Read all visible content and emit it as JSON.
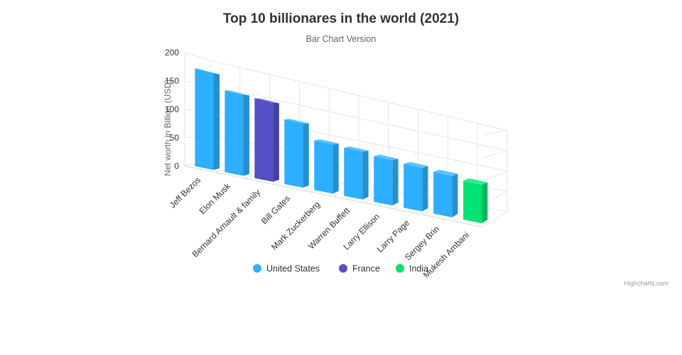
{
  "chart_data": {
    "type": "bar",
    "title": "Top 10 billionares in the world (2021)",
    "subtitle": "Bar Chart Version",
    "ylabel": "Net worth in Billion (USD)",
    "xlabel": "",
    "ylim": [
      0,
      200
    ],
    "yticks": [
      0,
      50,
      100,
      150,
      200
    ],
    "grid": true,
    "legend_position": "bottom-center",
    "categories": [
      "Jeff Bezos",
      "Elon Musk",
      "Bernard Arnault & family",
      "Bill Gates",
      "Mark Zuckerberg",
      "Warren Buffett",
      "Larry Ellison",
      "Larry Page",
      "Sergey Brin",
      "Mukesh Ambani"
    ],
    "series": [
      {
        "name": "United States",
        "color": "#2caffe",
        "values": [
          177,
          151,
          null,
          124,
          97,
          96,
          93,
          91.5,
          89,
          null
        ]
      },
      {
        "name": "France",
        "color": "#544fc5",
        "values": [
          null,
          null,
          150,
          null,
          null,
          null,
          null,
          null,
          null,
          null
        ]
      },
      {
        "name": "India",
        "color": "#00e272",
        "values": [
          null,
          null,
          null,
          null,
          null,
          null,
          null,
          null,
          null,
          84.5
        ]
      }
    ]
  },
  "credits": {
    "text": "Highcharts.com"
  }
}
